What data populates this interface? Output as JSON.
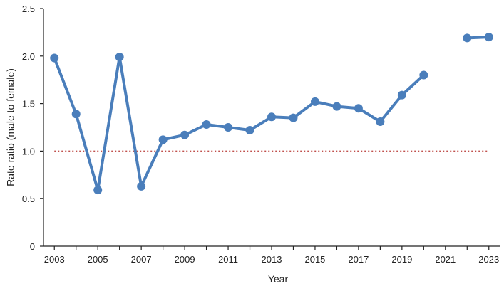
{
  "chart_data": {
    "type": "line",
    "title": "",
    "xlabel": "Year",
    "ylabel": "Rate ratio (male to female)",
    "xlim": [
      2002.5,
      2023.5
    ],
    "ylim": [
      0,
      2.5
    ],
    "x_ticks": [
      2003,
      2005,
      2007,
      2009,
      2011,
      2013,
      2015,
      2017,
      2019,
      2021,
      2023
    ],
    "y_ticks": [
      0,
      0.5,
      1.0,
      1.5,
      2.0,
      2.5
    ],
    "y_tick_labels": [
      "0",
      "0.5",
      "1.0",
      "1.5",
      "2.0",
      "2.5"
    ],
    "grid": false,
    "colors": {
      "series": "#4a7ebb",
      "reference": "#c0504d"
    },
    "reference_line": {
      "y": 1.0,
      "style": "dotted"
    },
    "series": [
      {
        "x": [
          2003,
          2004,
          2005,
          2006,
          2007,
          2008,
          2009,
          2010,
          2011,
          2012,
          2013,
          2014,
          2015,
          2016,
          2017,
          2018,
          2019,
          2020,
          2021,
          2022,
          2023
        ],
        "values": [
          1.98,
          1.39,
          0.59,
          1.99,
          0.63,
          1.12,
          1.17,
          1.28,
          1.25,
          1.22,
          1.36,
          1.35,
          1.52,
          1.47,
          1.45,
          1.31,
          1.59,
          1.8,
          null,
          2.19,
          2.2
        ]
      }
    ]
  }
}
